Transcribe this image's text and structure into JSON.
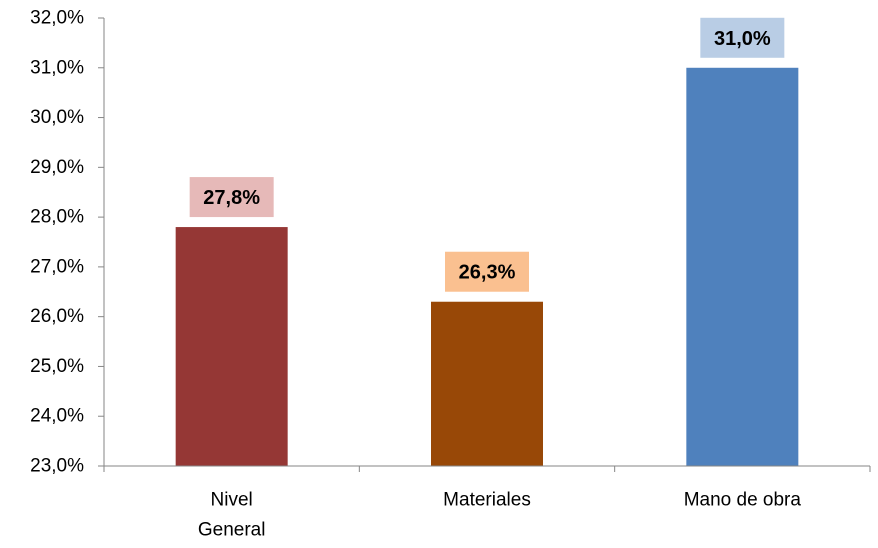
{
  "chart_data": {
    "type": "bar",
    "categories": [
      "Nivel General",
      "Materiales",
      "Mano de obra"
    ],
    "category_label_lines": [
      [
        "Nivel",
        "General"
      ],
      [
        "Materiales"
      ],
      [
        "Mano de obra"
      ]
    ],
    "values": [
      27.8,
      26.3,
      31.0
    ],
    "data_labels": [
      "27,8%",
      "26,3%",
      "31,0%"
    ],
    "ylim": [
      23.0,
      32.0
    ],
    "ytick_values": [
      23,
      24,
      25,
      26,
      27,
      28,
      29,
      30,
      31,
      32
    ],
    "ytick_labels": [
      "23,0%",
      "24,0%",
      "25,0%",
      "26,0%",
      "27,0%",
      "28,0%",
      "29,0%",
      "30,0%",
      "31,0%",
      "32,0%"
    ],
    "grid": false,
    "legend": "none",
    "bar_colors": [
      "#953735",
      "#984807",
      "#4f81bd"
    ],
    "label_bg_colors": [
      "#e6b9b8",
      "#fac090",
      "#b9cde5"
    ],
    "axis_color": "#868686",
    "text_color": "#000000"
  }
}
